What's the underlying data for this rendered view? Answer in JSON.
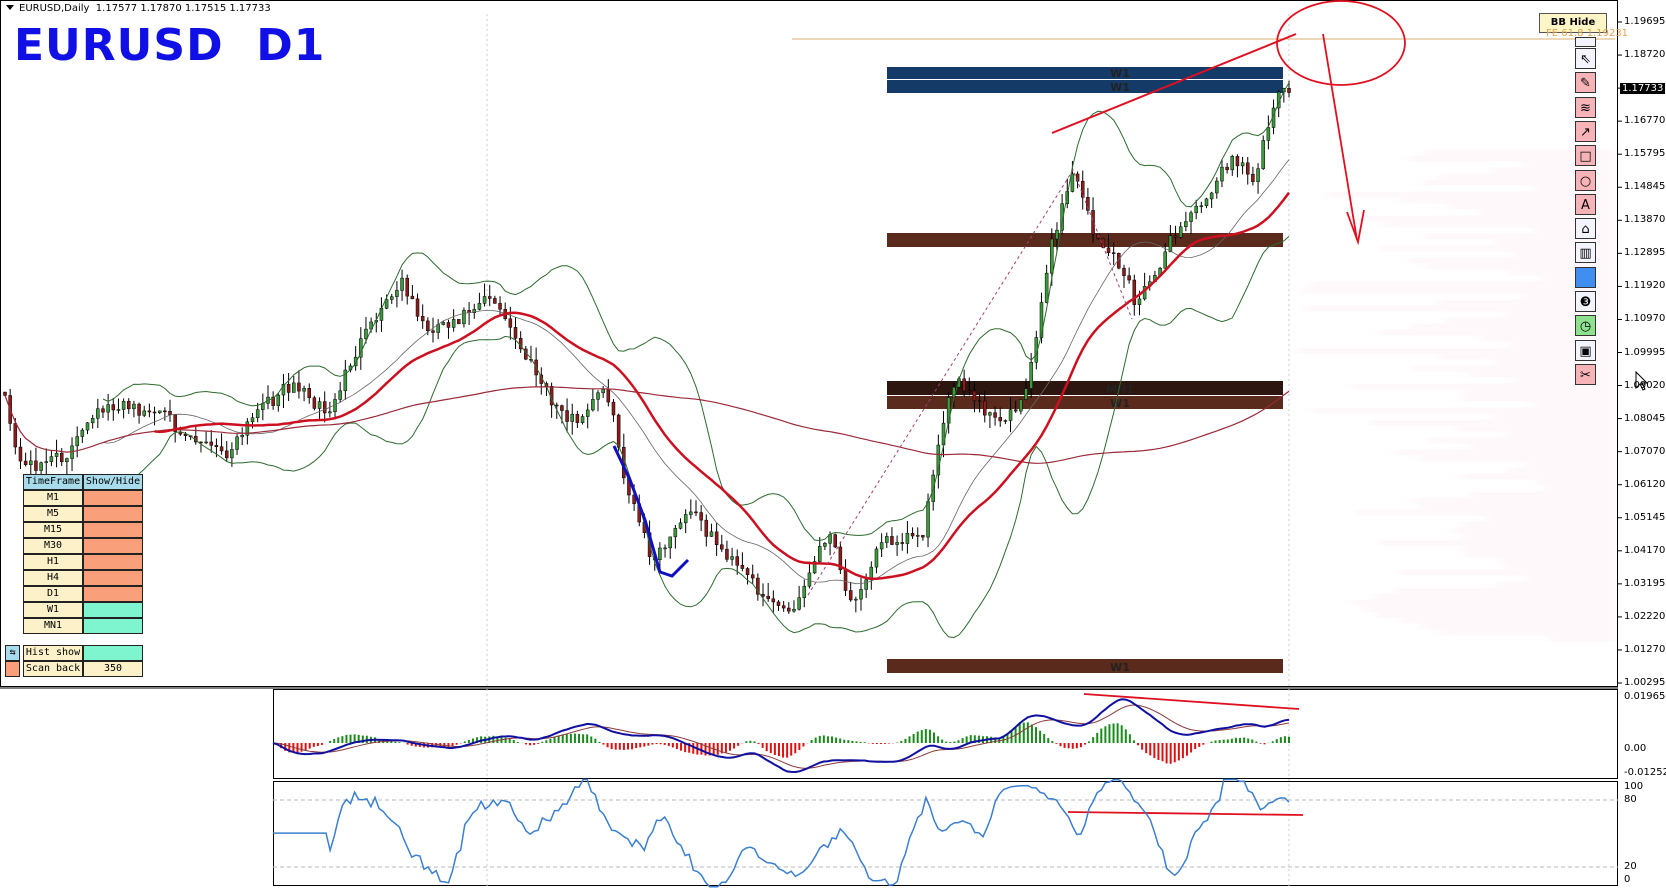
{
  "header": {
    "symbol_info": "EURUSD,Daily",
    "ohlc": "1.17577 1.17870 1.17515 1.17733"
  },
  "title_overlay": "EURUSD  D1",
  "bb_button": "BB Hide",
  "fe_label": "FE 61.8 1.19231",
  "price_axis": {
    "ticks": [
      "1.19695",
      "1.18720",
      "",
      "1.16770",
      "1.15795",
      "1.14845",
      "1.13870",
      "1.12895",
      "1.11920",
      "1.10970",
      "1.09995",
      "1.09020",
      "1.08045",
      "1.07070",
      "1.06120",
      "1.05145",
      "1.04170",
      "1.03195",
      "1.02220",
      "1.01270",
      "1.00295"
    ],
    "current": "1.17733"
  },
  "macd_axis": {
    "max": "0.019654",
    "zero": "0.00",
    "min": "-0.012523"
  },
  "rsi_axis": {
    "top": "100",
    "upper": "80",
    "lower": "20",
    "bottom": "0"
  },
  "zones": [
    {
      "label": "W1",
      "color": "#143a68"
    },
    {
      "label": "W1",
      "color": "#143a68"
    },
    {
      "label": "",
      "color": "#5a2a1c"
    },
    {
      "label": "MN1",
      "color": "#2e1610"
    },
    {
      "label": "W1",
      "color": "#5a2a1c"
    },
    {
      "label": "W1",
      "color": "#5a2a1c"
    }
  ],
  "timeframe_table": {
    "headers": [
      "TimeFrame",
      "Show/Hide"
    ],
    "rows": [
      {
        "tf": "M1",
        "visible": false
      },
      {
        "tf": "M5",
        "visible": false
      },
      {
        "tf": "M15",
        "visible": false
      },
      {
        "tf": "M30",
        "visible": false
      },
      {
        "tf": "H1",
        "visible": false
      },
      {
        "tf": "H4",
        "visible": false
      },
      {
        "tf": "D1",
        "visible": false
      },
      {
        "tf": "W1",
        "visible": true
      },
      {
        "tf": "MN1",
        "visible": true
      }
    ]
  },
  "settings": {
    "hist_show_label": "Hist show",
    "scan_back_label": "Scan back",
    "scan_back_value": "350"
  },
  "toolbar": {
    "items": [
      {
        "icon": "blank",
        "glyph": "",
        "bg": "#f4f4ff"
      },
      {
        "icon": "cursor-icon",
        "glyph": "⇖",
        "bg": "#f4f4ff"
      },
      {
        "icon": "pencil-icon",
        "glyph": "✎",
        "bg": "#f6b4b8"
      },
      {
        "icon": "wave-lines-icon",
        "glyph": "≋",
        "bg": "#f6b4b8"
      },
      {
        "icon": "arrow-icon",
        "glyph": "↗",
        "bg": "#f6b4b8"
      },
      {
        "icon": "rectangle-icon",
        "glyph": "□",
        "bg": "#f6b4b8"
      },
      {
        "icon": "circle-icon",
        "glyph": "○",
        "bg": "#f6b4b8"
      },
      {
        "icon": "text-icon",
        "glyph": "A",
        "bg": "#f6b4b8"
      },
      {
        "icon": "label-tag-icon",
        "glyph": "⌂",
        "bg": "#f4f4ff"
      },
      {
        "icon": "trash-icon",
        "glyph": "▥",
        "bg": "#f4f4ff"
      },
      {
        "icon": "color-swatch-icon",
        "glyph": "",
        "bg": "#3f8ef0"
      },
      {
        "icon": "number-3-icon",
        "glyph": "❸",
        "bg": "#f4f4ff"
      },
      {
        "icon": "clock-icon",
        "glyph": "◷",
        "bg": "#8fe08f"
      },
      {
        "icon": "save-icon",
        "glyph": "▣",
        "bg": "#f4f4ff"
      },
      {
        "icon": "scissors-icon",
        "glyph": "✂",
        "bg": "#f6b4b8"
      }
    ]
  },
  "colors": {
    "title": "#1010e6",
    "bull": "#3c9a3c",
    "bear": "#8b1c1c",
    "ma_fast": "#cc1020",
    "ma_slow": "#9a2a3a",
    "bands": "#2e6b2e",
    "annotation": "#e01020",
    "fe_line": "#d8b070",
    "hide": "#f9a07a",
    "show": "#7ff5cf",
    "macd": "#1010a0",
    "rsi": "#3a7fd0"
  }
}
